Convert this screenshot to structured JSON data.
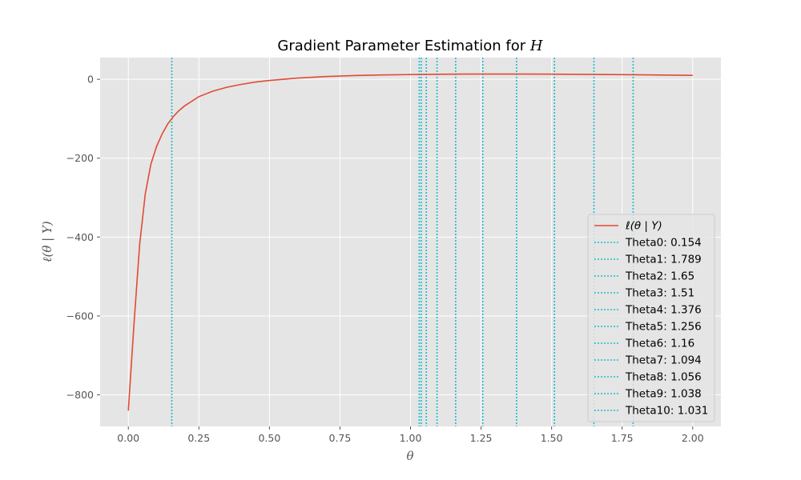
{
  "chart_data": {
    "type": "line",
    "title": "Gradient Parameter Estimation for ",
    "title_var": "H",
    "xlabel": "θ",
    "ylabel": "ℓ(θ | Y)",
    "xlim": [
      -0.1,
      2.1
    ],
    "ylim": [
      -880,
      55
    ],
    "xticks": [
      0.0,
      0.25,
      0.5,
      0.75,
      1.0,
      1.25,
      1.5,
      1.75,
      2.0
    ],
    "xtick_labels": [
      "0.00",
      "0.25",
      "0.50",
      "0.75",
      "1.00",
      "1.25",
      "1.50",
      "1.75",
      "2.00"
    ],
    "yticks": [
      0,
      -200,
      -400,
      -600,
      -800
    ],
    "ytick_labels": [
      "0",
      "−200",
      "−400",
      "−600",
      "−800"
    ],
    "grid": true,
    "legend_position": "center-right",
    "colors": {
      "line": "#E24A33",
      "vline": "#17BECF",
      "background": "#E5E5E5",
      "grid": "#FFFFFF"
    },
    "series": [
      {
        "name": "ℓ(θ | Y)",
        "x": [
          0.0,
          0.02,
          0.04,
          0.06,
          0.08,
          0.1,
          0.12,
          0.14,
          0.16,
          0.18,
          0.2,
          0.25,
          0.3,
          0.35,
          0.4,
          0.45,
          0.5,
          0.6,
          0.7,
          0.8,
          0.9,
          1.0,
          1.1,
          1.2,
          1.3,
          1.4,
          1.5,
          1.6,
          1.7,
          1.8,
          1.9,
          2.0
        ],
        "y": [
          -840,
          -620,
          -420,
          -290,
          -215,
          -170,
          -138,
          -113,
          -94,
          -79,
          -67,
          -44,
          -30,
          -20,
          -13,
          -7,
          -3,
          3,
          7,
          9.5,
          11,
          12,
          12.8,
          13.2,
          13.3,
          13.2,
          13.0,
          12.6,
          12.1,
          11.5,
          10.7,
          10.0
        ]
      }
    ],
    "vlines": [
      {
        "label": "Theta0: 0.154",
        "x": 0.154
      },
      {
        "label": "Theta1: 1.789",
        "x": 1.789
      },
      {
        "label": "Theta2: 1.65",
        "x": 1.65
      },
      {
        "label": "Theta3: 1.51",
        "x": 1.51
      },
      {
        "label": "Theta4: 1.376",
        "x": 1.376
      },
      {
        "label": "Theta5: 1.256",
        "x": 1.256
      },
      {
        "label": "Theta6: 1.16",
        "x": 1.16
      },
      {
        "label": "Theta7: 1.094",
        "x": 1.094
      },
      {
        "label": "Theta8: 1.056",
        "x": 1.056
      },
      {
        "label": "Theta9: 1.038",
        "x": 1.038
      },
      {
        "label": "Theta10: 1.031",
        "x": 1.031
      }
    ]
  }
}
